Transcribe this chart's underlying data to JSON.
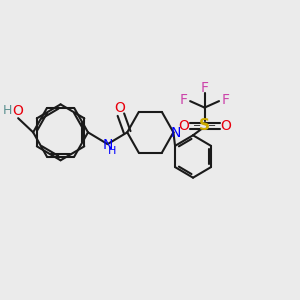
{
  "bg_color": "#ebebeb",
  "bond_color": "#1a1a1a",
  "bond_width": 1.5,
  "figsize": [
    3.0,
    3.0
  ],
  "dpi": 100,
  "colors": {
    "O": "#e8000d",
    "N": "#0000ff",
    "S": "#ccaa00",
    "F": "#cc44aa",
    "H": "#5a9090",
    "C": "#1a1a1a"
  }
}
